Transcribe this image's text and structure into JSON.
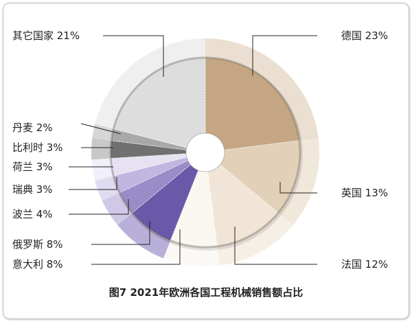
{
  "chart_data": {
    "type": "pie",
    "title": "图7 2021年欧洲各国工程机械销售额占比",
    "unit": "%",
    "slices": [
      {
        "name": "德国",
        "value": 23,
        "label": "德国 23%",
        "color": "#c4a782",
        "outer": "#eadfd0"
      },
      {
        "name": "英国",
        "value": 13,
        "label": "英国 13%",
        "color": "#e2d0b8",
        "outer": "#f1e8dc"
      },
      {
        "name": "法国",
        "value": 12,
        "label": "法国 12%",
        "color": "#f0e5d6",
        "outer": "#f6efe6"
      },
      {
        "name": "意大利",
        "value": 8,
        "label": "意大利 8%",
        "color": "#faf6f0",
        "outer": "#fbf9f5"
      },
      {
        "name": "俄罗斯",
        "value": 8,
        "label": "俄罗斯 8%",
        "color": "#6a58a8",
        "outer": "#b8b0d8"
      },
      {
        "name": "波兰",
        "value": 4,
        "label": "波兰 4%",
        "color": "#9a8cc8",
        "outer": "#cfc8e6"
      },
      {
        "name": "瑞典",
        "value": 3,
        "label": "瑞典 3%",
        "color": "#c0b6e0",
        "outer": "#e0dbf0"
      },
      {
        "name": "荷兰",
        "value": 3,
        "label": "荷兰 3%",
        "color": "#e6e2f2",
        "outer": "#f1effa"
      },
      {
        "name": "比利时",
        "value": 3,
        "label": "比利时 3%",
        "color": "#707070",
        "outer": "#c8c8c8"
      },
      {
        "name": "丹麦",
        "value": 2,
        "label": "丹麦 2%",
        "color": "#a8a8a8",
        "outer": "#d6d6d6"
      },
      {
        "name": "其它国家",
        "value": 21,
        "label": "其它国家 21%",
        "color": "#dddddd",
        "outer": "#efefef"
      }
    ]
  }
}
